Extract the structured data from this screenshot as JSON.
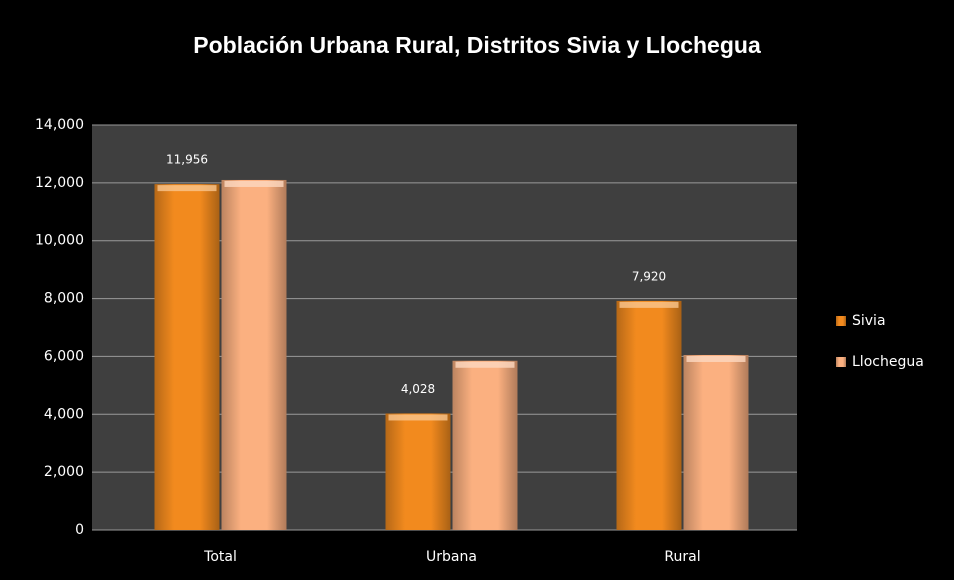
{
  "chart_data": {
    "type": "bar",
    "title": "Población Urbana Rural, Distritos Sivia y Llochegua",
    "categories": [
      "Total",
      "Urbana",
      "Rural"
    ],
    "series": [
      {
        "name": "Sivia",
        "color": "#f28a1e",
        "values": [
          11956,
          4028,
          7920
        ],
        "value_labels": [
          "11,956",
          "4,028",
          "7,920"
        ]
      },
      {
        "name": "Llochegua",
        "color": "#fbb080",
        "values": [
          12100,
          5850,
          6050
        ]
      }
    ],
    "ylim": [
      0,
      14000
    ],
    "yticks": [
      0,
      {
        "value": 2000,
        "label": "2,000"
      },
      {
        "value": 4000,
        "label": "4,000"
      },
      {
        "value": 6000,
        "label": "6,000"
      },
      {
        "value": 8000,
        "label": "8,000"
      },
      {
        "value": 10000,
        "label": "10,000"
      },
      {
        "value": 12000,
        "label": "12,000"
      },
      {
        "value": 14000,
        "label": "14,000"
      }
    ],
    "grid": true,
    "legend": "right"
  }
}
